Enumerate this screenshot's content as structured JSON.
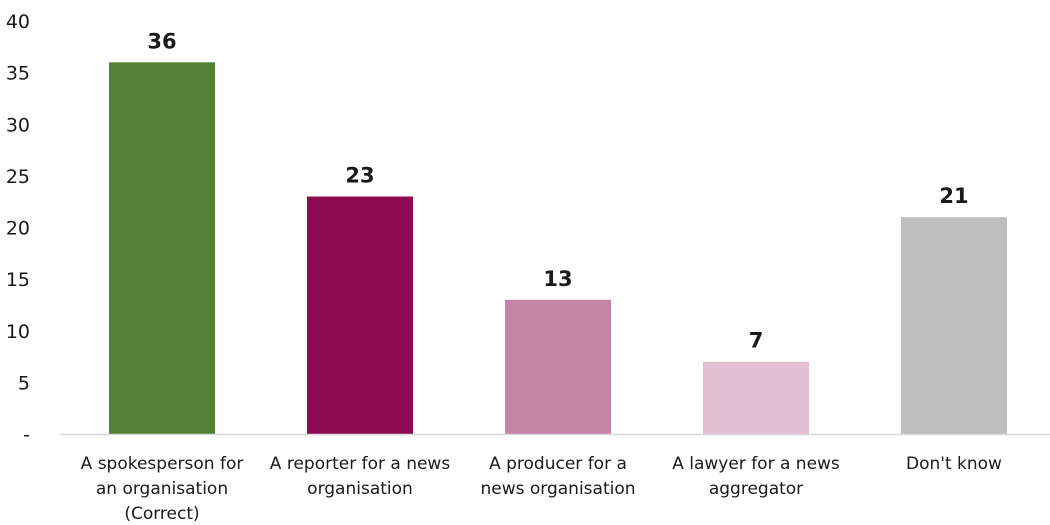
{
  "chart_data": {
    "type": "bar",
    "title": "",
    "xlabel": "",
    "ylabel": "",
    "ylim": [
      0,
      40
    ],
    "y_ticks": [
      {
        "value": 0,
        "label": "-"
      },
      {
        "value": 5,
        "label": "5"
      },
      {
        "value": 10,
        "label": "10"
      },
      {
        "value": 15,
        "label": "15"
      },
      {
        "value": 20,
        "label": "20"
      },
      {
        "value": 25,
        "label": "25"
      },
      {
        "value": 30,
        "label": "30"
      },
      {
        "value": 35,
        "label": "35"
      },
      {
        "value": 40,
        "label": "40"
      }
    ],
    "grid": false,
    "categories": [
      [
        "A spokesperson for",
        "an organisation",
        "(Correct)"
      ],
      [
        "A reporter for a news",
        "organisation"
      ],
      [
        "A producer for a",
        "news organisation"
      ],
      [
        "A lawyer for a news",
        "aggregator"
      ],
      [
        "Don't know"
      ]
    ],
    "values": [
      36,
      23,
      13,
      7,
      21
    ],
    "data_labels": [
      "36",
      "23",
      "13",
      "7",
      "21"
    ],
    "colors": [
      "#538135",
      "#8B0A50",
      "#C484A6",
      "#E2BFD2",
      "#BFBEBF"
    ]
  }
}
